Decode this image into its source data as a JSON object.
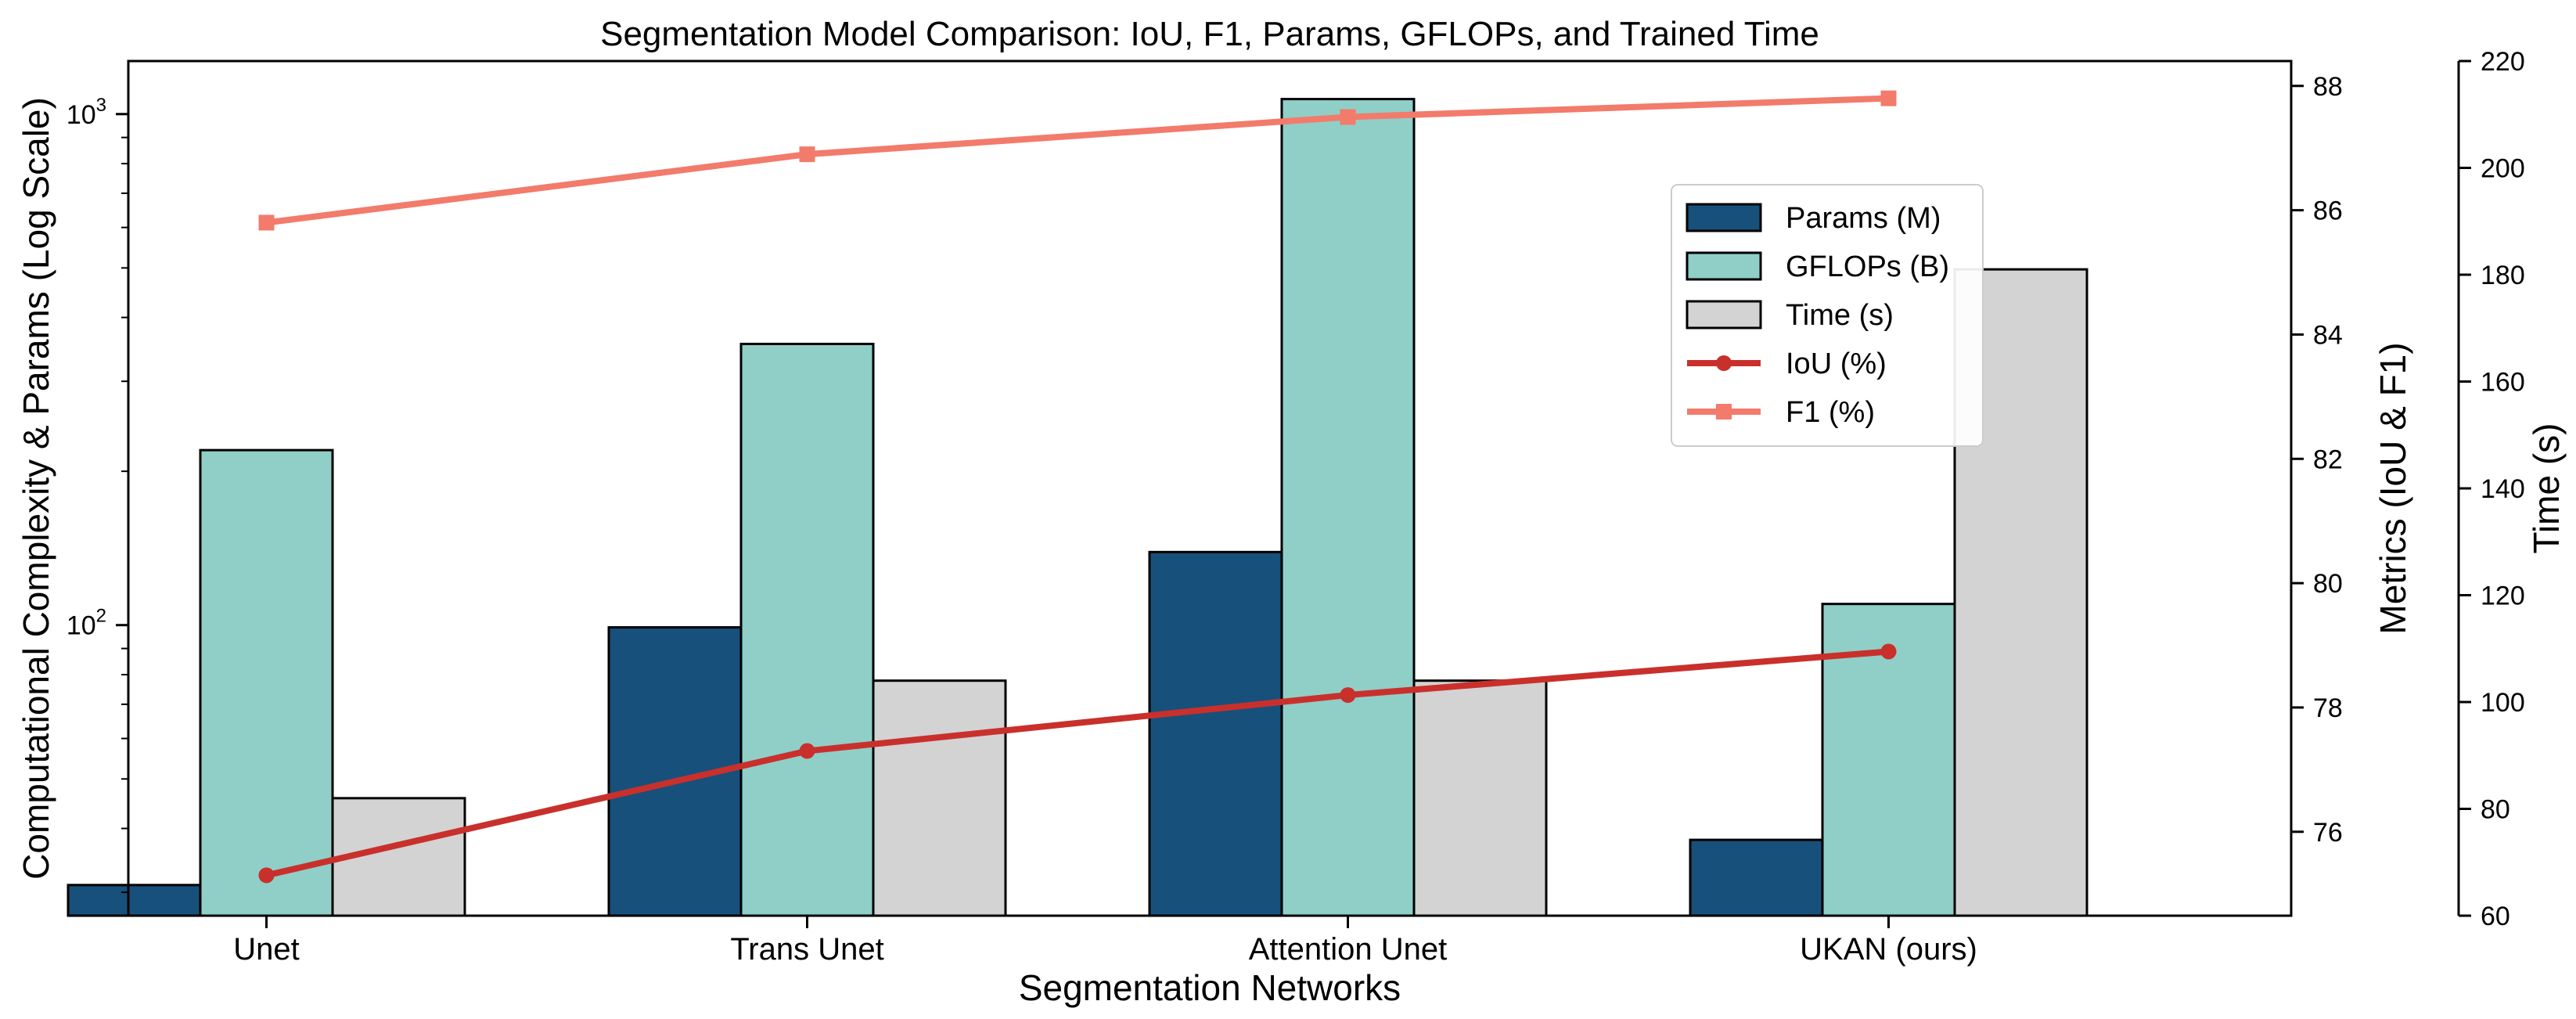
{
  "chart_data": {
    "type": "bar+line",
    "title": "Segmentation Model Comparison: IoU, F1, Params, GFLOPs, and Trained Time",
    "xlabel": "Segmentation Networks",
    "categories": [
      "Unet",
      "Trans Unet",
      "Attention Unet",
      "UKAN (ours)"
    ],
    "left_axis": {
      "label": "Computational Complexity & Params (Log Scale)",
      "scale": "log",
      "range": [
        27,
        1270
      ],
      "ticks": [
        {
          "value": 100,
          "base": "10",
          "exp": "2"
        },
        {
          "value": 1000,
          "base": "10",
          "exp": "3"
        }
      ]
    },
    "metrics_axis": {
      "label": "Metrics (IoU & F1)",
      "range": [
        74.65,
        88.4
      ],
      "ticks": [
        76,
        78,
        80,
        82,
        84,
        86,
        88
      ]
    },
    "time_axis": {
      "label": "Time (s)",
      "range": [
        60,
        220
      ],
      "ticks": [
        60,
        80,
        100,
        120,
        140,
        160,
        180,
        200,
        220
      ]
    },
    "bar_series": [
      {
        "name": "Params (M)",
        "color": "#17507b",
        "axis": "left",
        "values": [
          31,
          99,
          139,
          38
        ]
      },
      {
        "name": "GFLOPs (B)",
        "color": "#8fcfc8",
        "axis": "left",
        "values": [
          220,
          355,
          1070,
          110
        ]
      },
      {
        "name": "Time (s)",
        "color": "#d3d3d3",
        "axis": "time",
        "values": [
          82,
          104,
          104,
          181
        ]
      }
    ],
    "line_series": [
      {
        "name": "IoU (%)",
        "color": "#c9302c",
        "marker": "circle",
        "axis": "metrics",
        "values": [
          75.3,
          77.3,
          78.2,
          78.9
        ]
      },
      {
        "name": "F1 (%)",
        "color": "#f27b6b",
        "marker": "square",
        "axis": "metrics",
        "values": [
          85.8,
          86.9,
          87.5,
          87.8
        ]
      }
    ],
    "legend_position": "upper-right"
  }
}
